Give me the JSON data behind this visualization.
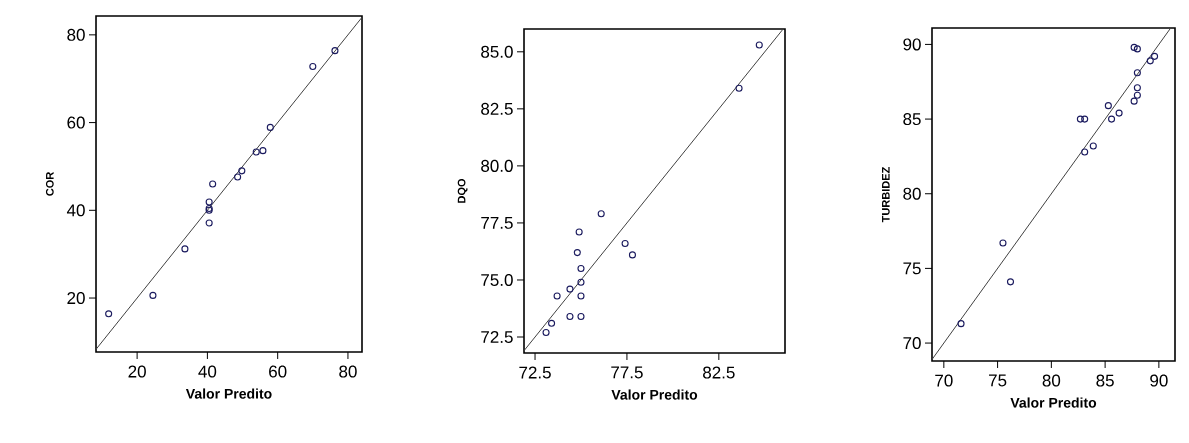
{
  "chart_data": [
    {
      "type": "scatter",
      "xlabel": "Valor Predito",
      "ylabel": "COR",
      "marker": "circle",
      "grid": false,
      "xlim": [
        8.3,
        84
      ],
      "ylim": [
        7.7,
        84.3
      ],
      "xticks": [
        20,
        40,
        60,
        80
      ],
      "yticks": [
        20,
        40,
        60,
        80
      ],
      "series": [
        {
          "color": "#1a1a5e",
          "x": [
            11.9,
            24.5,
            33.6,
            40.5,
            40.5,
            40.5,
            40.5,
            41.5,
            48.6,
            49.8,
            53.9,
            55.8,
            57.9,
            70.0,
            76.3
          ],
          "values": [
            16.4,
            20.6,
            31.2,
            37.1,
            40.0,
            40.4,
            41.9,
            46.0,
            47.6,
            49.0,
            53.3,
            53.6,
            58.9,
            72.8,
            76.4
          ]
        },
        {
          "type": "line",
          "marker": "none",
          "color": "#404040",
          "x": [
            8.3,
            84
          ],
          "values": [
            8.3,
            84
          ]
        }
      ]
    },
    {
      "type": "scatter",
      "xlabel": "Valor Predito",
      "ylabel": "DQO",
      "marker": "circle",
      "grid": false,
      "xlim": [
        71.9,
        86.1
      ],
      "ylim": [
        71.8,
        86.0
      ],
      "xticks": [
        72.5,
        77.5,
        82.5
      ],
      "yticks": [
        72.5,
        {
          "value": 75,
          "label": "75.0"
        },
        77.5,
        {
          "value": 80,
          "label": "80.0"
        },
        82.5,
        {
          "value": 85,
          "label": "85.0"
        }
      ],
      "series": [
        {
          "color": "#1a1a5e",
          "x": [
            73.1,
            73.4,
            73.7,
            74.4,
            74.4,
            75.0,
            75.0,
            75.0,
            75.0,
            74.8,
            74.9,
            76.1,
            77.4,
            77.8,
            83.6,
            84.7
          ],
          "values": [
            72.7,
            73.1,
            74.3,
            73.4,
            74.6,
            73.4,
            74.3,
            74.9,
            75.5,
            76.2,
            77.1,
            77.9,
            76.6,
            76.1,
            83.4,
            85.3
          ]
        },
        {
          "type": "line",
          "marker": "none",
          "color": "#404040",
          "x": [
            71.9,
            86.0
          ],
          "values": [
            71.9,
            86.0
          ]
        }
      ]
    },
    {
      "type": "scatter",
      "xlabel": "Valor Predito",
      "ylabel": "TURBIDEZ",
      "marker": "circle",
      "grid": false,
      "xlim": [
        68.9,
        91.5
      ],
      "ylim": [
        68.8,
        91.1
      ],
      "xticks": [
        70,
        75,
        80,
        85,
        90
      ],
      "yticks": [
        70,
        75,
        80,
        85,
        90
      ],
      "series": [
        {
          "color": "#1a1a5e",
          "x": [
            71.6,
            75.5,
            76.2,
            82.7,
            83.1,
            83.1,
            83.9,
            85.3,
            85.6,
            86.3,
            87.7,
            88.0,
            88.0,
            88.0,
            87.7,
            88.0,
            89.2,
            89.6
          ],
          "values": [
            71.3,
            76.7,
            74.1,
            85.0,
            85.0,
            82.8,
            83.2,
            85.9,
            85.0,
            85.4,
            86.2,
            86.6,
            87.1,
            88.1,
            89.8,
            89.7,
            88.9,
            89.2
          ]
        },
        {
          "type": "line",
          "marker": "none",
          "color": "#404040",
          "x": [
            68.9,
            91.1
          ],
          "values": [
            68.9,
            91.1
          ]
        }
      ]
    }
  ]
}
